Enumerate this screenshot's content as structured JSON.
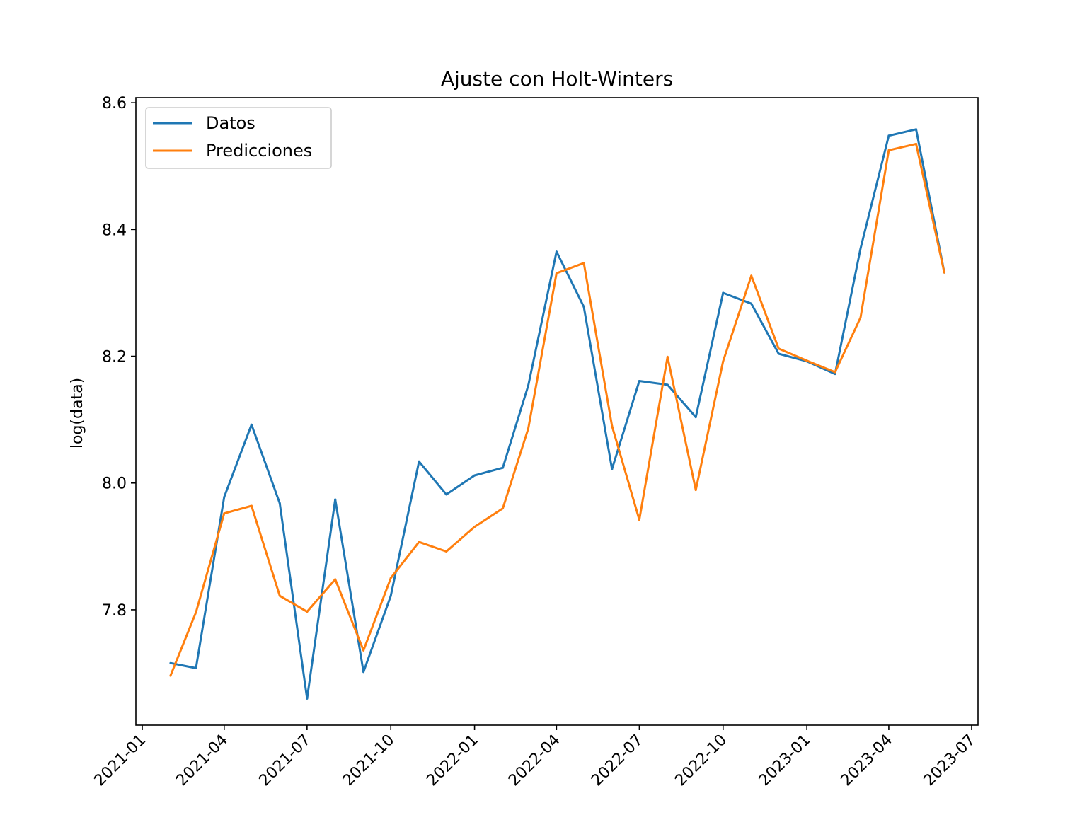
{
  "chart_data": {
    "type": "line",
    "title": "Ajuste con Holt-Winters",
    "xlabel": "",
    "ylabel": "log(data)",
    "x": [
      "2021-02-01",
      "2021-03-01",
      "2021-04-01",
      "2021-05-01",
      "2021-06-01",
      "2021-07-01",
      "2021-08-01",
      "2021-09-01",
      "2021-10-01",
      "2021-11-01",
      "2021-12-01",
      "2022-01-01",
      "2022-02-01",
      "2022-03-01",
      "2022-04-01",
      "2022-05-01",
      "2022-06-01",
      "2022-07-01",
      "2022-08-01",
      "2022-09-01",
      "2022-10-01",
      "2022-11-01",
      "2022-12-01",
      "2023-01-01",
      "2023-02-01",
      "2023-03-01",
      "2023-04-01",
      "2023-05-01",
      "2023-06-01"
    ],
    "series": [
      {
        "name": "Datos",
        "color": "#1f77b4",
        "values": [
          7.716,
          7.708,
          7.978,
          8.092,
          7.968,
          7.66,
          7.974,
          7.702,
          7.822,
          8.034,
          7.982,
          8.012,
          8.024,
          8.154,
          8.365,
          8.278,
          8.022,
          8.161,
          8.155,
          8.104,
          8.3,
          8.283,
          8.204,
          8.192,
          8.172,
          8.37,
          8.548,
          8.558,
          8.332
        ]
      },
      {
        "name": "Predicciones",
        "color": "#ff7f0e",
        "values": [
          7.696,
          7.796,
          7.952,
          7.964,
          7.822,
          7.797,
          7.848,
          7.736,
          7.85,
          7.907,
          7.892,
          7.931,
          7.96,
          8.086,
          8.331,
          8.347,
          8.09,
          7.942,
          8.199,
          7.989,
          8.192,
          8.327,
          8.212,
          8.193,
          8.175,
          8.261,
          8.525,
          8.535,
          8.332
        ]
      }
    ],
    "x_ticks": [
      "2021-01",
      "2021-04",
      "2021-07",
      "2021-10",
      "2022-01",
      "2022-04",
      "2022-07",
      "2022-10",
      "2023-01",
      "2023-04",
      "2023-07"
    ],
    "y_ticks": [
      "7.8",
      "8.0",
      "8.2",
      "8.4",
      "8.6"
    ],
    "xlim": [
      "2020-12-25",
      "2023-07-08"
    ],
    "ylim": [
      7.618,
      8.608
    ],
    "grid": false,
    "legend_position": "upper-left"
  }
}
